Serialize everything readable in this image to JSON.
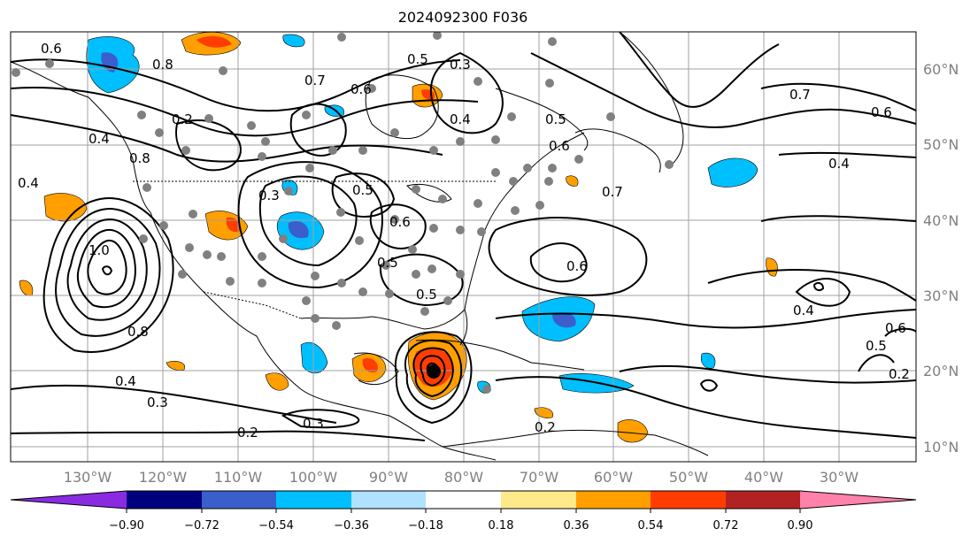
{
  "map": {
    "title": "2024092300 F036",
    "latitude_labels": [
      "60°N",
      "50°N",
      "40°N",
      "30°N",
      "20°N",
      "10°N"
    ],
    "longitude_labels": [
      "130°W",
      "120°W",
      "110°W",
      "100°W",
      "90°W",
      "80°W",
      "70°W",
      "60°W",
      "50°W",
      "40°W",
      "30°W"
    ],
    "contour_labels": [
      "0.6",
      "0.8",
      "0.7",
      "0.6",
      "0.5",
      "0.3",
      "0.4",
      "0.7",
      "0.6",
      "0.4",
      "0.5",
      "0.6",
      "0.7",
      "0.4",
      "0.2",
      "0.5",
      "0.3",
      "0.4",
      "1.0",
      "0.8",
      "0.6",
      "0.5",
      "0.5",
      "0.6",
      "0.4",
      "0.6",
      "0.5",
      "0.2",
      "0.8",
      "0.4",
      "0.3",
      "0.2",
      "0.3",
      "0.2"
    ],
    "colorbar": {
      "ticks": [
        "−0.90",
        "−0.72",
        "−0.54",
        "−0.36",
        "−0.18",
        "0.18",
        "0.36",
        "0.54",
        "0.72",
        "0.90"
      ],
      "colors": [
        "#8a2be2",
        "#00007f",
        "#3a5fcd",
        "#00bfff",
        "#b0e2ff",
        "#ffffff",
        "#ffe98a",
        "#ff9f00",
        "#ff3d00",
        "#b22222",
        "#ff82ab"
      ]
    },
    "colors": {
      "positive_orange": "#ff9f00",
      "positive_red": "#ff3d00",
      "negative_cyan": "#00bfff",
      "negative_blue": "#3a5fcd",
      "station_dot": "#808080",
      "grid": "#a0a0a0"
    }
  }
}
